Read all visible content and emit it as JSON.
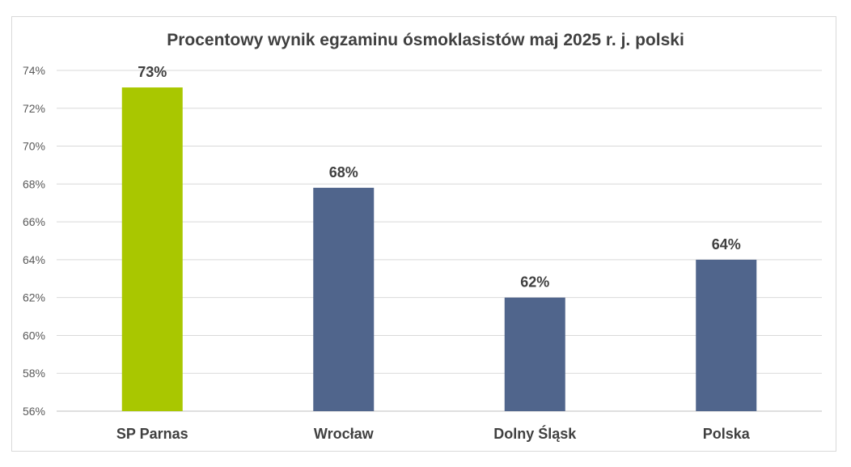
{
  "chart_data": {
    "type": "bar",
    "title": "Procentowy wynik egzaminu ósmoklasistów maj 2025 r. j. polski",
    "categories": [
      "SP Parnas",
      "Wrocław",
      "Dolny Śląsk",
      "Polska"
    ],
    "values": [
      73.1,
      67.8,
      62.0,
      64.0
    ],
    "data_labels": [
      "73%",
      "68%",
      "62%",
      "64%"
    ],
    "bar_colors": [
      "#a9c700",
      "#50658c",
      "#50658c",
      "#50658c"
    ],
    "ylim": [
      56,
      74
    ],
    "yticks": [
      56,
      58,
      60,
      62,
      64,
      66,
      68,
      70,
      72,
      74
    ],
    "ytick_labels": [
      "56%",
      "58%",
      "60%",
      "62%",
      "64%",
      "66%",
      "68%",
      "70%",
      "72%",
      "74%"
    ],
    "grid": true,
    "legend": "none",
    "xlabel": "",
    "ylabel": ""
  }
}
